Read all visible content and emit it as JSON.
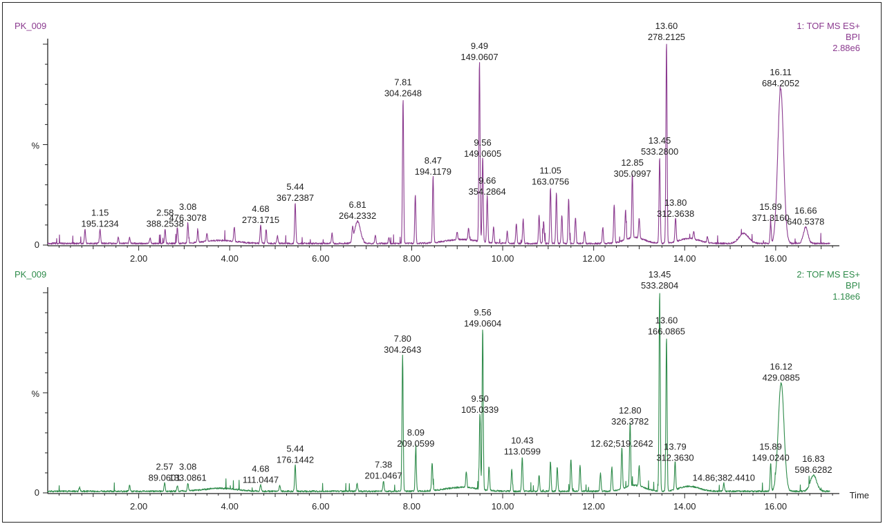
{
  "chart_data": [
    {
      "type": "line",
      "sample_label": "PK_009",
      "trace_label": "1: TOF MS ES+",
      "trace_type": "BPI",
      "intensity": "2.88e6",
      "ylabel": "%",
      "y_tick_zero": "0",
      "color": "#8b3a8f",
      "xlim": [
        0,
        17.4
      ],
      "ylim": [
        0,
        100
      ],
      "x_ticks": [
        "2.00",
        "4.00",
        "6.00",
        "8.00",
        "10.00",
        "12.00",
        "14.00",
        "16.00"
      ],
      "xlabel": "",
      "peaks": [
        {
          "rt": 0.82,
          "h": 7
        },
        {
          "rt": 1.15,
          "h": 7,
          "label": [
            "1.15",
            "195.1234"
          ]
        },
        {
          "rt": 1.55,
          "h": 3
        },
        {
          "rt": 1.8,
          "h": 3
        },
        {
          "rt": 2.25,
          "h": 3
        },
        {
          "rt": 2.58,
          "h": 7,
          "label": [
            "2.58",
            "388.2538"
          ]
        },
        {
          "rt": 2.85,
          "h": 8
        },
        {
          "rt": 3.08,
          "h": 10,
          "label": [
            "3.08",
            "476.3078"
          ]
        },
        {
          "rt": 3.3,
          "h": 6
        },
        {
          "rt": 3.5,
          "h": 4
        },
        {
          "rt": 4.1,
          "h": 7
        },
        {
          "rt": 4.68,
          "h": 9,
          "label": [
            "4.68",
            "273.1715"
          ]
        },
        {
          "rt": 4.8,
          "h": 7
        },
        {
          "rt": 5.05,
          "h": 4
        },
        {
          "rt": 5.44,
          "h": 20,
          "label": [
            "5.44",
            "367.2387"
          ]
        },
        {
          "rt": 6.25,
          "h": 5
        },
        {
          "rt": 6.7,
          "h": 6
        },
        {
          "rt": 6.81,
          "h": 11,
          "label": [
            "6.81",
            "264.2332"
          ],
          "w": 0.09
        },
        {
          "rt": 7.2,
          "h": 4
        },
        {
          "rt": 7.5,
          "h": 3
        },
        {
          "rt": 7.81,
          "h": 72,
          "label": [
            "7.81",
            "304.2648"
          ]
        },
        {
          "rt": 8.08,
          "h": 24
        },
        {
          "rt": 8.47,
          "h": 33,
          "label": [
            "8.47",
            "194.1179"
          ]
        },
        {
          "rt": 9.0,
          "h": 4
        },
        {
          "rt": 9.25,
          "h": 6
        },
        {
          "rt": 9.49,
          "h": 90,
          "label": [
            "9.49",
            "149.0607"
          ]
        },
        {
          "rt": 9.56,
          "h": 42,
          "label": [
            "9.56",
            "149.0605"
          ]
        },
        {
          "rt": 9.66,
          "h": 23,
          "label": [
            "9.66",
            "354.2864"
          ]
        },
        {
          "rt": 9.8,
          "h": 8
        },
        {
          "rt": 10.1,
          "h": 6
        },
        {
          "rt": 10.3,
          "h": 10
        },
        {
          "rt": 10.45,
          "h": 12
        },
        {
          "rt": 10.8,
          "h": 14
        },
        {
          "rt": 10.9,
          "h": 11
        },
        {
          "rt": 11.05,
          "h": 28,
          "label": [
            "11.05",
            "163.0756"
          ]
        },
        {
          "rt": 11.18,
          "h": 25
        },
        {
          "rt": 11.3,
          "h": 14
        },
        {
          "rt": 11.45,
          "h": 22
        },
        {
          "rt": 11.6,
          "h": 13
        },
        {
          "rt": 11.8,
          "h": 6
        },
        {
          "rt": 12.2,
          "h": 8
        },
        {
          "rt": 12.45,
          "h": 19
        },
        {
          "rt": 12.7,
          "h": 15
        },
        {
          "rt": 12.85,
          "h": 32,
          "label": [
            "12.85",
            "305.0997"
          ]
        },
        {
          "rt": 13.0,
          "h": 10
        },
        {
          "rt": 13.45,
          "h": 43,
          "label": [
            "13.45",
            "533.2800"
          ]
        },
        {
          "rt": 13.6,
          "h": 100,
          "label": [
            "13.60",
            "278.2125"
          ]
        },
        {
          "rt": 13.8,
          "h": 12,
          "label": [
            "13.80",
            "312.3638"
          ]
        },
        {
          "rt": 14.2,
          "h": 4
        },
        {
          "rt": 14.5,
          "h": 3
        },
        {
          "rt": 15.3,
          "h": 5,
          "w": 0.15
        },
        {
          "rt": 15.89,
          "h": 10,
          "label": [
            "15.89",
            "371.3160"
          ]
        },
        {
          "rt": 16.11,
          "h": 77,
          "label": [
            "16.11",
            "684.2052"
          ],
          "w": 0.09
        },
        {
          "rt": 16.66,
          "h": 8,
          "label": [
            "16.66",
            "640.5378"
          ],
          "w": 0.07
        }
      ]
    },
    {
      "type": "line",
      "sample_label": "PK_009",
      "trace_label": "2: TOF MS ES+",
      "trace_type": "BPI",
      "intensity": "1.18e6",
      "ylabel": "%",
      "y_tick_zero": "0",
      "color": "#2e8b4a",
      "xlim": [
        0,
        17.4
      ],
      "ylim": [
        0,
        100
      ],
      "x_ticks": [
        "2.00",
        "4.00",
        "6.00",
        "8.00",
        "10.00",
        "12.00",
        "14.00",
        "16.00"
      ],
      "xlabel": "Time",
      "peaks": [
        {
          "rt": 0.7,
          "h": 2
        },
        {
          "rt": 1.8,
          "h": 3
        },
        {
          "rt": 2.57,
          "h": 4,
          "label": [
            "2.57",
            "89.0601"
          ]
        },
        {
          "rt": 2.85,
          "h": 3
        },
        {
          "rt": 3.08,
          "h": 4,
          "label": [
            "3.08",
            "133.0861"
          ]
        },
        {
          "rt": 4.68,
          "h": 3,
          "label": [
            "4.68",
            "111.0447"
          ]
        },
        {
          "rt": 5.1,
          "h": 3
        },
        {
          "rt": 5.44,
          "h": 13,
          "label": [
            "5.44",
            "176.1442"
          ]
        },
        {
          "rt": 6.8,
          "h": 4
        },
        {
          "rt": 7.38,
          "h": 5,
          "label": [
            "7.38",
            "201.0467"
          ]
        },
        {
          "rt": 7.8,
          "h": 68,
          "label": [
            "7.80",
            "304.2643"
          ]
        },
        {
          "rt": 8.09,
          "h": 21,
          "label": [
            "8.09",
            "209.0599"
          ]
        },
        {
          "rt": 8.45,
          "h": 14
        },
        {
          "rt": 9.2,
          "h": 8
        },
        {
          "rt": 9.5,
          "h": 38,
          "label": [
            "9.50",
            "105.0339"
          ]
        },
        {
          "rt": 9.56,
          "h": 81,
          "label": [
            "9.56",
            "149.0604"
          ]
        },
        {
          "rt": 9.7,
          "h": 12
        },
        {
          "rt": 10.2,
          "h": 11
        },
        {
          "rt": 10.43,
          "h": 17,
          "label": [
            "10.43",
            "113.0599"
          ]
        },
        {
          "rt": 10.8,
          "h": 8
        },
        {
          "rt": 11.05,
          "h": 15
        },
        {
          "rt": 11.2,
          "h": 12
        },
        {
          "rt": 11.5,
          "h": 16
        },
        {
          "rt": 11.7,
          "h": 13
        },
        {
          "rt": 12.15,
          "h": 9
        },
        {
          "rt": 12.4,
          "h": 12
        },
        {
          "rt": 12.62,
          "h": 21,
          "label": [
            "12.62;519.2642"
          ]
        },
        {
          "rt": 12.8,
          "h": 32,
          "label": [
            "12.80",
            "326.3782"
          ]
        },
        {
          "rt": 13.0,
          "h": 10
        },
        {
          "rt": 13.45,
          "h": 100,
          "label": [
            "13.45",
            "533.2804"
          ]
        },
        {
          "rt": 13.6,
          "h": 77,
          "label": [
            "13.60",
            "166.0865"
          ]
        },
        {
          "rt": 13.79,
          "h": 14,
          "label": [
            "13.79",
            "312.3630"
          ]
        },
        {
          "rt": 14.86,
          "h": 4,
          "label": [
            "14.86;382.4410"
          ]
        },
        {
          "rt": 15.89,
          "h": 14,
          "label": [
            "15.89",
            "149.0240"
          ]
        },
        {
          "rt": 16.12,
          "h": 54,
          "label": [
            "16.12",
            "429.0885"
          ],
          "w": 0.09
        },
        {
          "rt": 16.83,
          "h": 8,
          "label": [
            "16.83",
            "598.6282"
          ],
          "w": 0.1
        }
      ]
    }
  ]
}
